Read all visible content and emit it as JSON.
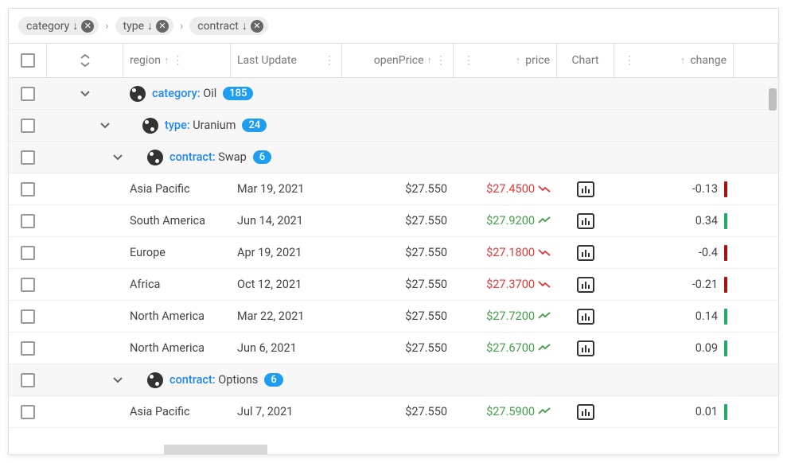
{
  "groupChips": [
    {
      "label": "category"
    },
    {
      "label": "type"
    },
    {
      "label": "contract"
    }
  ],
  "columns": {
    "region": "region",
    "lastUpdate": "Last Update",
    "openPrice": "openPrice",
    "price": "price",
    "chart": "Chart",
    "change": "change"
  },
  "groups": {
    "g0": {
      "label": "category:",
      "value": "Oil",
      "count": "185",
      "indent": 0
    },
    "g1": {
      "label": "type:",
      "value": "Uranium",
      "count": "24",
      "indent": 1
    },
    "g2": {
      "label": "contract:",
      "value": "Swap",
      "count": "6",
      "indent": 2
    },
    "g3": {
      "label": "contract:",
      "value": "Options",
      "count": "6",
      "indent": 2
    }
  },
  "rows": [
    {
      "region": "Asia Pacific",
      "lastUpdate": "Mar 19, 2021",
      "openPrice": "$27.550",
      "price": "$27.4500",
      "dir": "down",
      "change": "-0.13"
    },
    {
      "region": "South America",
      "lastUpdate": "Jun 14, 2021",
      "openPrice": "$27.550",
      "price": "$27.9200",
      "dir": "up",
      "change": "0.34"
    },
    {
      "region": "Europe",
      "lastUpdate": "Apr 19, 2021",
      "openPrice": "$27.550",
      "price": "$27.1800",
      "dir": "down",
      "change": "-0.4"
    },
    {
      "region": "Africa",
      "lastUpdate": "Oct 12, 2021",
      "openPrice": "$27.550",
      "price": "$27.3700",
      "dir": "down",
      "change": "-0.21"
    },
    {
      "region": "North America",
      "lastUpdate": "Mar 22, 2021",
      "openPrice": "$27.550",
      "price": "$27.7200",
      "dir": "up",
      "change": "0.14"
    },
    {
      "region": "North America",
      "lastUpdate": "Jun 6, 2021",
      "openPrice": "$27.550",
      "price": "$27.6700",
      "dir": "up",
      "change": "0.09"
    }
  ],
  "rowsAfter": [
    {
      "region": "Asia Pacific",
      "lastUpdate": "Jul 7, 2021",
      "openPrice": "$27.550",
      "price": "$27.5900",
      "dir": "up",
      "change": "0.01"
    }
  ],
  "colors": {
    "accent": "#1e88f0",
    "badge": "#1e9ef0",
    "priceUp": "#43a047",
    "priceDown": "#e53935",
    "barUp": "#2a6b3f",
    "barDown": "#a1172a",
    "border": "#e0e0e0",
    "groupBg": "#f7f7f7"
  }
}
